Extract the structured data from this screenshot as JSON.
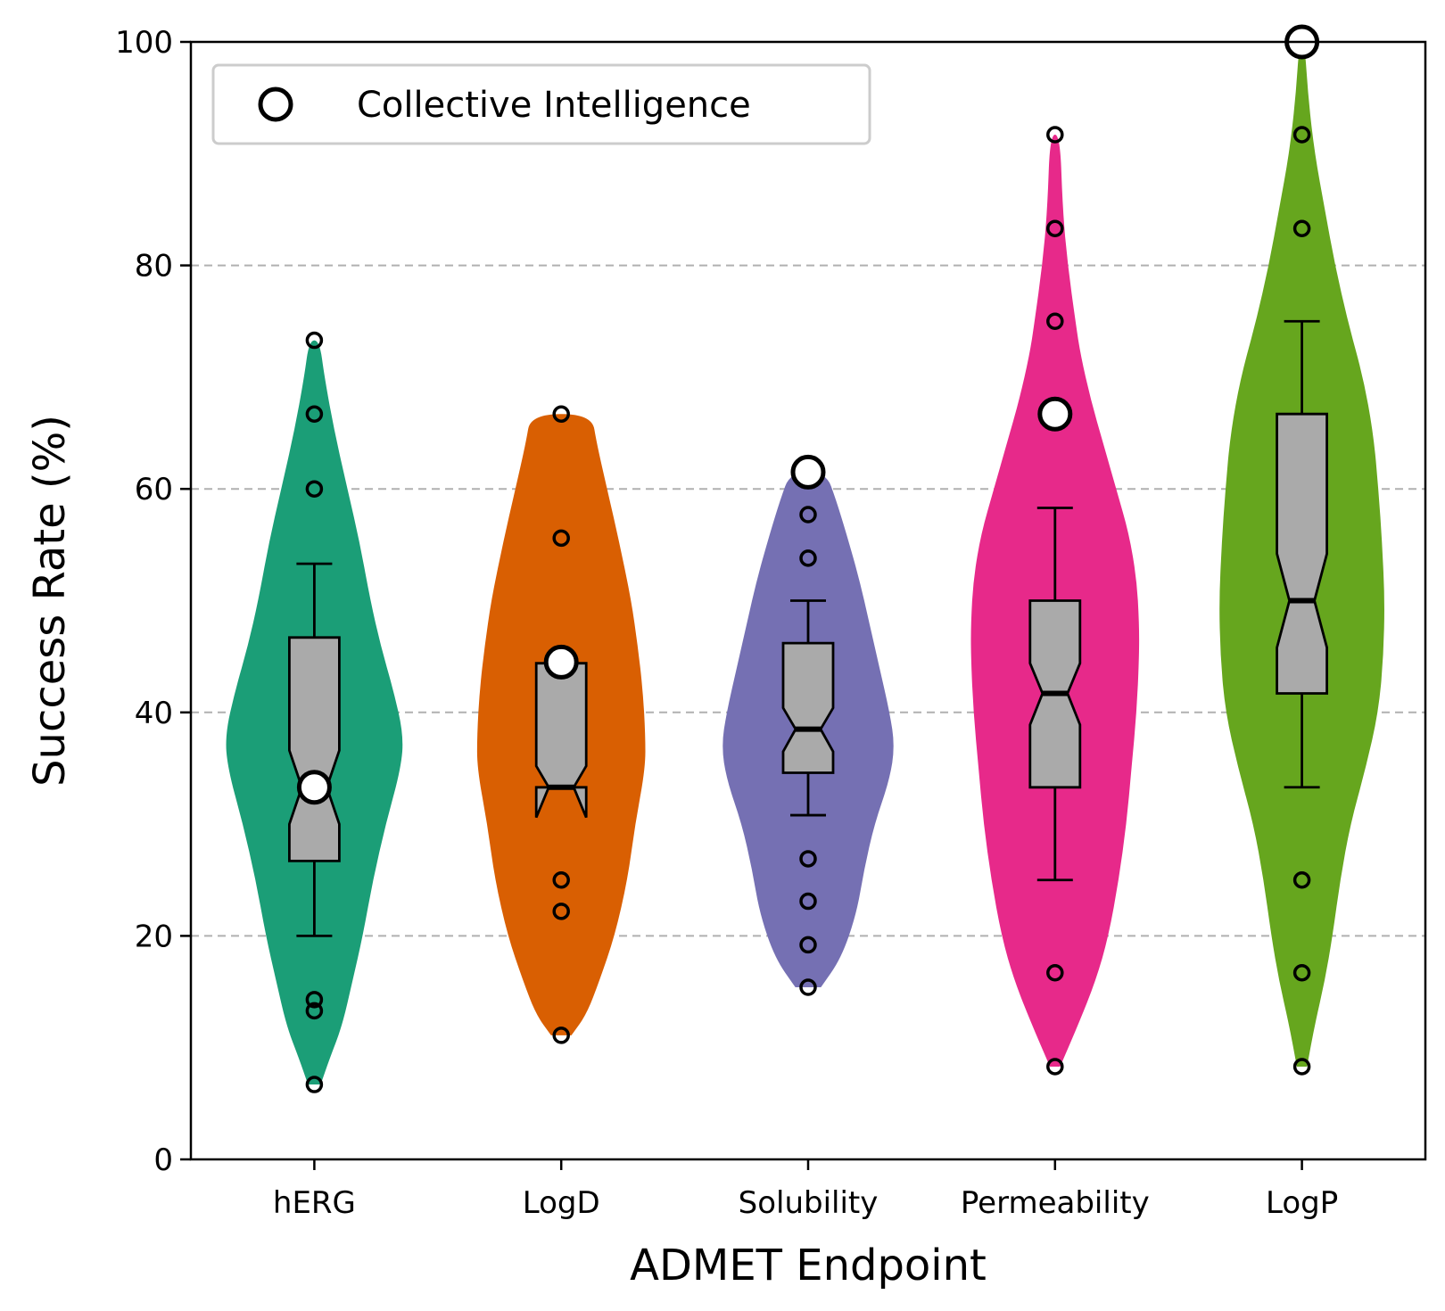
{
  "chart_data": {
    "type": "violin",
    "xlabel": "ADMET Endpoint",
    "ylabel": "Success Rate (%)",
    "ylim": [
      0,
      100
    ],
    "yticks": [
      0,
      20,
      40,
      60,
      80,
      100
    ],
    "ytick_labels": [
      "0",
      "20",
      "40",
      "60",
      "80",
      "100"
    ],
    "grid": "horizontal dashed at 20, 40, 60, 80",
    "legend": {
      "placement": "top-left",
      "entries": [
        {
          "marker": "white-circle",
          "label": "Collective Intelligence"
        }
      ]
    },
    "categories": [
      "hERG",
      "LogD",
      "Solubility",
      "Permeability",
      "LogP"
    ],
    "colors": [
      "#1b9e77",
      "#d95f02",
      "#7570b3",
      "#e7298a",
      "#66a61e"
    ],
    "box_color": "#aaaaaa",
    "series": [
      {
        "category": "hERG",
        "violin_range": [
          6.7,
          73.3
        ],
        "density": [
          [
            6.7,
            0.05
          ],
          [
            9,
            0.12
          ],
          [
            12,
            0.22
          ],
          [
            16,
            0.3
          ],
          [
            20,
            0.38
          ],
          [
            25,
            0.46
          ],
          [
            30,
            0.56
          ],
          [
            35,
            0.68
          ],
          [
            38,
            0.7
          ],
          [
            42,
            0.62
          ],
          [
            46,
            0.52
          ],
          [
            50,
            0.44
          ],
          [
            55,
            0.36
          ],
          [
            60,
            0.26
          ],
          [
            65,
            0.16
          ],
          [
            70,
            0.08
          ],
          [
            73.3,
            0.04
          ]
        ],
        "whisker_low": 20,
        "q1": 26.7,
        "median": 33.3,
        "q3": 46.7,
        "whisker_high": 53.3,
        "notch_low": 30,
        "notch_high": 36.6,
        "outliers": [
          6.7,
          13.3,
          14.3,
          60,
          66.7,
          73.3
        ],
        "collective_intelligence": 33.3
      },
      {
        "category": "LogD",
        "violin_range": [
          11.1,
          66.7
        ],
        "density": [
          [
            11.1,
            0.08
          ],
          [
            13,
            0.2
          ],
          [
            16,
            0.3
          ],
          [
            20,
            0.42
          ],
          [
            25,
            0.52
          ],
          [
            30,
            0.58
          ],
          [
            35,
            0.66
          ],
          [
            38,
            0.66
          ],
          [
            42,
            0.64
          ],
          [
            46,
            0.6
          ],
          [
            50,
            0.55
          ],
          [
            55,
            0.46
          ],
          [
            60,
            0.36
          ],
          [
            64,
            0.28
          ],
          [
            66.7,
            0.24
          ]
        ],
        "whisker_low": 33.3,
        "q1": 33.3,
        "median": 33.3,
        "q3": 44.4,
        "whisker_high": 44.4,
        "notch_low": 30.6,
        "notch_high": 35.2,
        "outliers": [
          11.1,
          22.2,
          25,
          55.6,
          66.7
        ],
        "collective_intelligence": 44.5
      },
      {
        "category": "Solubility",
        "violin_range": [
          15.4,
          61.5
        ],
        "density": [
          [
            15.4,
            0.1
          ],
          [
            18,
            0.26
          ],
          [
            22,
            0.38
          ],
          [
            26,
            0.44
          ],
          [
            30,
            0.52
          ],
          [
            34,
            0.64
          ],
          [
            37,
            0.68
          ],
          [
            40,
            0.64
          ],
          [
            44,
            0.56
          ],
          [
            48,
            0.48
          ],
          [
            52,
            0.4
          ],
          [
            56,
            0.3
          ],
          [
            59,
            0.22
          ],
          [
            61.5,
            0.14
          ]
        ],
        "whisker_low": 30.8,
        "q1": 34.6,
        "median": 38.5,
        "q3": 46.2,
        "whisker_high": 50,
        "notch_low": 36.5,
        "notch_high": 40.4,
        "outliers": [
          15.4,
          19.2,
          23.1,
          26.9,
          53.8,
          57.7
        ],
        "collective_intelligence": 61.5
      },
      {
        "category": "Permeability",
        "violin_range": [
          8.3,
          91.7
        ],
        "density": [
          [
            8.3,
            0.04
          ],
          [
            12,
            0.18
          ],
          [
            16,
            0.32
          ],
          [
            20,
            0.42
          ],
          [
            25,
            0.5
          ],
          [
            30,
            0.56
          ],
          [
            35,
            0.6
          ],
          [
            40,
            0.64
          ],
          [
            45,
            0.66
          ],
          [
            48,
            0.66
          ],
          [
            52,
            0.64
          ],
          [
            56,
            0.58
          ],
          [
            60,
            0.48
          ],
          [
            64,
            0.38
          ],
          [
            68,
            0.28
          ],
          [
            72,
            0.2
          ],
          [
            75,
            0.16
          ],
          [
            80,
            0.1
          ],
          [
            85,
            0.06
          ],
          [
            91.7,
            0.04
          ]
        ],
        "whisker_low": 25,
        "q1": 33.3,
        "median": 41.7,
        "q3": 50,
        "whisker_high": 58.3,
        "notch_low": 38.9,
        "notch_high": 44.4,
        "outliers": [
          8.3,
          16.7,
          75,
          83.3,
          91.7
        ],
        "collective_intelligence": 66.7
      },
      {
        "category": "LogP",
        "violin_range": [
          8.3,
          100
        ],
        "density": [
          [
            8.3,
            0.04
          ],
          [
            12,
            0.1
          ],
          [
            16,
            0.18
          ],
          [
            20,
            0.24
          ],
          [
            25,
            0.3
          ],
          [
            30,
            0.38
          ],
          [
            35,
            0.5
          ],
          [
            40,
            0.6
          ],
          [
            45,
            0.64
          ],
          [
            50,
            0.65
          ],
          [
            55,
            0.63
          ],
          [
            60,
            0.6
          ],
          [
            65,
            0.56
          ],
          [
            70,
            0.48
          ],
          [
            75,
            0.36
          ],
          [
            80,
            0.26
          ],
          [
            85,
            0.18
          ],
          [
            90,
            0.1
          ],
          [
            95,
            0.05
          ],
          [
            100,
            0.02
          ]
        ],
        "whisker_low": 33.3,
        "q1": 41.7,
        "median": 50,
        "q3": 66.7,
        "whisker_high": 75,
        "notch_low": 45.8,
        "notch_high": 54.2,
        "outliers": [
          8.3,
          16.7,
          25,
          83.3,
          91.7
        ],
        "collective_intelligence": 100
      }
    ]
  }
}
